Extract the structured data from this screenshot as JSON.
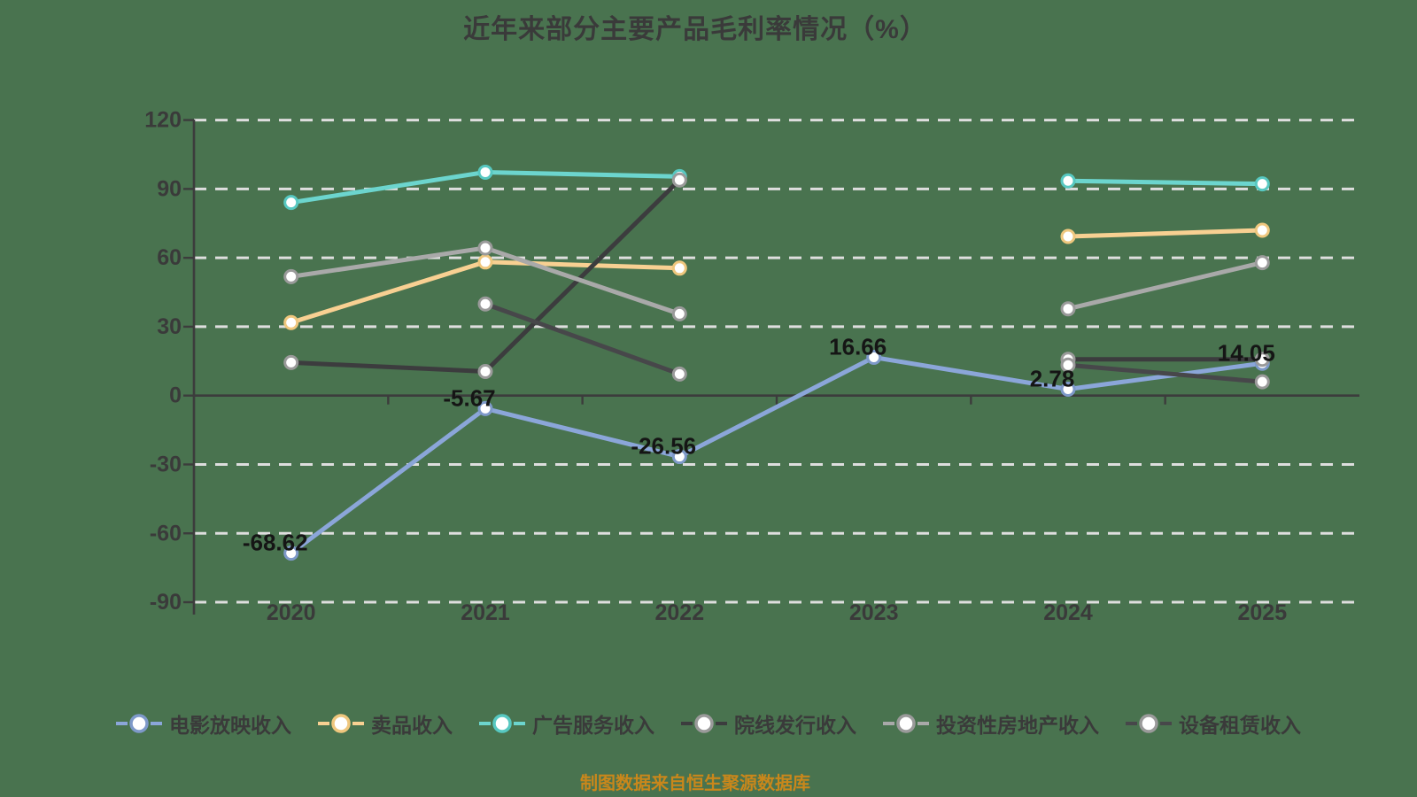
{
  "page": {
    "background_color": "#49734F",
    "title": "近年来部分主要产品毛利率情况（%）",
    "title_color": "#3A3A3A",
    "footer": "制图数据来自恒生聚源数据库",
    "footer_color": "#C9871B"
  },
  "chart_data": {
    "type": "line",
    "title": "近年来部分主要产品毛利率情况（%）",
    "categories": [
      "2020",
      "2021",
      "2022",
      "2023",
      "2024",
      "2025"
    ],
    "xlabel": "",
    "ylabel": "",
    "ylim": [
      -90,
      120
    ],
    "yticks": [
      120,
      90,
      60,
      30,
      0,
      -30,
      -60,
      -90
    ],
    "grid": "horizontal-dashed-white",
    "legend_position": "bottom",
    "axis_color": "#3C3C3C",
    "gridline_color": "#DEDEDE",
    "tick_label_color": "#3A3A3A",
    "data_label_color": "#151515",
    "series": [
      {
        "name": "电影放映收入",
        "color": "#8BA6D9",
        "marker_ring": "#7E99C9",
        "values": [
          -68.62,
          -5.67,
          -26.56,
          16.66,
          2.78,
          14.05
        ],
        "data_labels": [
          "-68.62",
          "-5.67",
          "-26.56",
          "16.66",
          "2.78",
          "14.05"
        ]
      },
      {
        "name": "卖品收入",
        "color": "#F8D092",
        "marker_ring": "#EFC77E",
        "values": [
          31.8,
          58.2,
          55.5,
          null,
          69.3,
          72.0
        ],
        "data_labels": null
      },
      {
        "name": "广告服务收入",
        "color": "#6CD5CE",
        "marker_ring": "#57C8C1",
        "values": [
          84.1,
          97.3,
          95.4,
          null,
          93.5,
          92.2
        ],
        "data_labels": null
      },
      {
        "name": "院线发行收入",
        "color": "#3C3C3E",
        "marker_ring": "#9A9A9A",
        "values": [
          14.4,
          10.5,
          93.9,
          null,
          15.8,
          15.8
        ],
        "data_labels": null
      },
      {
        "name": "投资性房地产收入",
        "color": "#A9A9A9",
        "marker_ring": "#9A9A9A",
        "values": [
          51.8,
          64.3,
          35.6,
          null,
          37.8,
          57.9
        ],
        "data_labels": null
      },
      {
        "name": "设备租赁收入",
        "color": "#47474A",
        "marker_ring": "#9A9A9A",
        "values": [
          null,
          39.9,
          9.4,
          null,
          13.3,
          6.0
        ],
        "data_labels": null
      }
    ]
  }
}
